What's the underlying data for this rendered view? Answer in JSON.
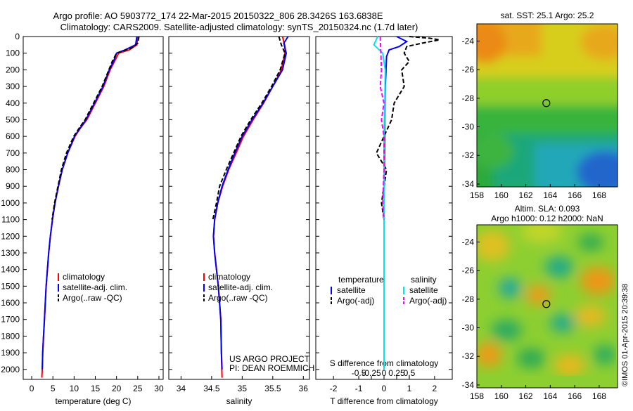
{
  "title": {
    "line1": "Argo profile: AO 5903772_174 22-Mar-2015 20150322_806 28.3426S 163.6838E",
    "line2": "Climatology: CARS2009. Satellite-adjusted climatology: synTS_20150324.nc (1.7d later)"
  },
  "credit": "©IMOS 01-Apr-2015 20:39:38",
  "chart_data": [
    {
      "type": "line",
      "id": "temperature",
      "xlabel": "temperature (deg C)",
      "xlim": [
        -2,
        31
      ],
      "xticks": [
        0,
        5,
        10,
        15,
        20,
        25,
        30
      ],
      "ylim": [
        0,
        2060
      ],
      "yticks": [
        0,
        100,
        200,
        300,
        400,
        500,
        600,
        700,
        800,
        900,
        1000,
        1100,
        1200,
        1300,
        1400,
        1500,
        1600,
        1700,
        1800,
        1900,
        2000
      ],
      "legend": {
        "position": "lower-center",
        "entries": [
          "climatology",
          "satellite-adj. clim.",
          "Argo(..raw -QC)"
        ]
      },
      "series": [
        {
          "name": "climatology",
          "color": "#ff0000",
          "style": "solid",
          "x": [
            25.0,
            24.8,
            23.0,
            20.5,
            19.5,
            18.5,
            17.0,
            15.0,
            13.0,
            11.5,
            10.2,
            8.5,
            7.2,
            6.3,
            5.5,
            4.9,
            4.4,
            4.0,
            3.7,
            3.4,
            3.2,
            3.0,
            2.8,
            2.6,
            2.5,
            2.4
          ],
          "y": [
            0,
            50,
            80,
            100,
            150,
            200,
            300,
            400,
            500,
            550,
            600,
            700,
            800,
            900,
            1000,
            1100,
            1200,
            1300,
            1400,
            1500,
            1600,
            1700,
            1800,
            1900,
            2000,
            2050
          ]
        },
        {
          "name": "satellite-adj. clim.",
          "color": "#0000ff",
          "style": "solid",
          "x": [
            24.8,
            24.5,
            22.0,
            20.0,
            19.3,
            18.3,
            16.8,
            14.8,
            12.8,
            11.4,
            10.1,
            8.5,
            7.2,
            6.3,
            5.5,
            4.9,
            4.4,
            4.0,
            3.7,
            3.4,
            3.2,
            3.0,
            2.8,
            2.6,
            2.5
          ],
          "y": [
            0,
            50,
            80,
            100,
            150,
            200,
            300,
            400,
            500,
            550,
            600,
            700,
            800,
            900,
            1000,
            1100,
            1200,
            1300,
            1400,
            1500,
            1600,
            1700,
            1800,
            1900,
            2000
          ]
        },
        {
          "name": "Argo(..raw -QC)",
          "color": "#000000",
          "style": "dashed",
          "x": [
            25.3,
            25.0,
            23.5,
            20.0,
            19.0,
            18.2,
            16.6,
            14.6,
            12.6,
            11.2,
            9.9,
            8.2,
            7.0,
            6.2,
            5.4,
            4.8
          ],
          "y": [
            0,
            40,
            70,
            100,
            150,
            200,
            300,
            400,
            500,
            550,
            600,
            700,
            800,
            900,
            1000,
            1100
          ]
        }
      ]
    },
    {
      "type": "line",
      "id": "salinity",
      "xlabel": "salinity",
      "xlim": [
        33.8,
        36.1
      ],
      "xticks": [
        34,
        34.5,
        35,
        35.5,
        36
      ],
      "xtick_labels": [
        "34",
        "34.5",
        "35",
        "35.5",
        "36"
      ],
      "ylim": [
        0,
        2060
      ],
      "legend": {
        "position": "lower-center",
        "entries": [
          "climatology",
          "satellite-adj. clim.",
          "Argo(..raw -QC)"
        ]
      },
      "annotation": [
        "US ARGO PROJECT",
        "PI: DEAN ROEMMICH"
      ],
      "series": [
        {
          "name": "climatology",
          "color": "#ff0000",
          "style": "solid",
          "x": [
            35.66,
            35.7,
            35.7,
            35.64,
            35.5,
            35.35,
            35.18,
            35.02,
            34.9,
            34.78,
            34.68,
            34.6,
            34.55,
            34.53,
            34.55,
            34.58,
            34.61,
            34.63,
            34.65,
            34.66,
            34.67
          ],
          "y": [
            0,
            60,
            100,
            200,
            300,
            400,
            500,
            600,
            700,
            800,
            900,
            1000,
            1100,
            1200,
            1300,
            1400,
            1500,
            1600,
            1700,
            1900,
            2050
          ]
        },
        {
          "name": "satellite-adj. clim.",
          "color": "#0000ff",
          "style": "solid",
          "x": [
            35.75,
            35.68,
            35.72,
            35.66,
            35.5,
            35.34,
            35.16,
            35.0,
            34.88,
            34.77,
            34.67,
            34.6,
            34.55,
            34.53,
            34.55,
            34.58,
            34.61,
            34.63,
            34.65,
            34.66,
            34.67
          ],
          "y": [
            0,
            40,
            100,
            200,
            300,
            400,
            500,
            600,
            700,
            800,
            900,
            1000,
            1100,
            1200,
            1300,
            1400,
            1500,
            1600,
            1700,
            1900,
            2000
          ]
        },
        {
          "name": "Argo(..raw -QC)",
          "color": "#000000",
          "style": "dashed",
          "x": [
            35.6,
            35.64,
            35.7,
            35.62,
            35.48,
            35.32,
            35.14,
            34.98,
            34.86,
            34.74,
            34.63,
            34.58,
            34.52
          ],
          "y": [
            0,
            50,
            100,
            200,
            300,
            400,
            500,
            600,
            700,
            800,
            900,
            1000,
            1100
          ]
        }
      ]
    },
    {
      "type": "line",
      "id": "difference",
      "xlabel": "T difference from climatology",
      "xlabel_top": "S difference from climatology",
      "xlim": [
        -2.7,
        2.7
      ],
      "xticks": [
        -2,
        -1,
        0,
        1,
        2
      ],
      "xtick_labels": [
        "-2",
        "-1",
        "0",
        "1",
        "2"
      ],
      "x2ticks": [
        -1.0,
        -0.5,
        0,
        0.5,
        1.0
      ],
      "x2tick_labels": [
        "-0.5",
        "-0.25",
        "0",
        "0.25",
        "0.5"
      ],
      "ylim": [
        0,
        2060
      ],
      "legend": {
        "position": "lower-center",
        "temperature_header": "temperature",
        "temperature_entries": [
          "satellite",
          "Argo(-adj)"
        ],
        "salinity_header": "salinity",
        "salinity_entries": [
          "satellite",
          "Argo(-adj)"
        ]
      },
      "series": [
        {
          "name": "T satellite",
          "color": "#0000ff",
          "style": "solid",
          "x": [
            0.5,
            0.9,
            0.6,
            0.2,
            0.1,
            0.08,
            0.05,
            0.03,
            0.02,
            0.0,
            0.0
          ],
          "y": [
            0,
            30,
            60,
            80,
            120,
            200,
            300,
            500,
            700,
            1000,
            2000
          ]
        },
        {
          "name": "T Argo(-adj)",
          "color": "#000000",
          "style": "dashed",
          "x": [
            1.0,
            1.8,
            2.2,
            1.5,
            0.9,
            0.8,
            1.0,
            0.7,
            0.8,
            0.4,
            0.3,
            0.0,
            -0.3,
            0.1,
            0.0,
            -0.1,
            0.0
          ],
          "y": [
            0,
            10,
            20,
            40,
            60,
            100,
            150,
            200,
            300,
            400,
            500,
            600,
            700,
            800,
            900,
            1000,
            1100
          ]
        },
        {
          "name": "S satellite",
          "color": "#00e5ee",
          "style": "solid",
          "x": [
            -0.25,
            -0.4,
            -0.05,
            0.05,
            0.03,
            0.0,
            0.0,
            0.0
          ],
          "y": [
            0,
            50,
            100,
            200,
            400,
            600,
            1000,
            2000
          ]
        },
        {
          "name": "S Argo(-adj)",
          "color": "#ff00ff",
          "style": "dashed",
          "x": [
            -0.15,
            -0.1,
            -0.15,
            0.0,
            -0.1,
            0.0,
            0.0,
            -0.05,
            0.0
          ],
          "y": [
            0,
            200,
            300,
            400,
            500,
            600,
            800,
            1000,
            1100
          ]
        }
      ]
    },
    {
      "type": "heatmap",
      "id": "sst-map",
      "title": "sat. SST: 25.1  Argo: 25.2",
      "xlim": [
        158,
        169.5
      ],
      "ylim": [
        -34.2,
        -22.8
      ],
      "xticks": [
        158,
        160,
        162,
        164,
        166,
        168
      ],
      "yticks": [
        -24,
        -26,
        -28,
        -30,
        -32,
        -34
      ],
      "marker": {
        "lon": 163.68,
        "lat": -28.34
      }
    },
    {
      "type": "heatmap",
      "id": "sla-map",
      "title": "Altim. SLA: 0.093",
      "subtitle": "Argo h1000: 0.12 h2000: NaN",
      "xlim": [
        158,
        169.5
      ],
      "ylim": [
        -34.2,
        -22.8
      ],
      "xticks": [
        158,
        160,
        162,
        164,
        166,
        168
      ],
      "yticks": [
        -24,
        -26,
        -28,
        -30,
        -32,
        -34
      ],
      "marker": {
        "lon": 163.68,
        "lat": -28.34
      }
    }
  ]
}
